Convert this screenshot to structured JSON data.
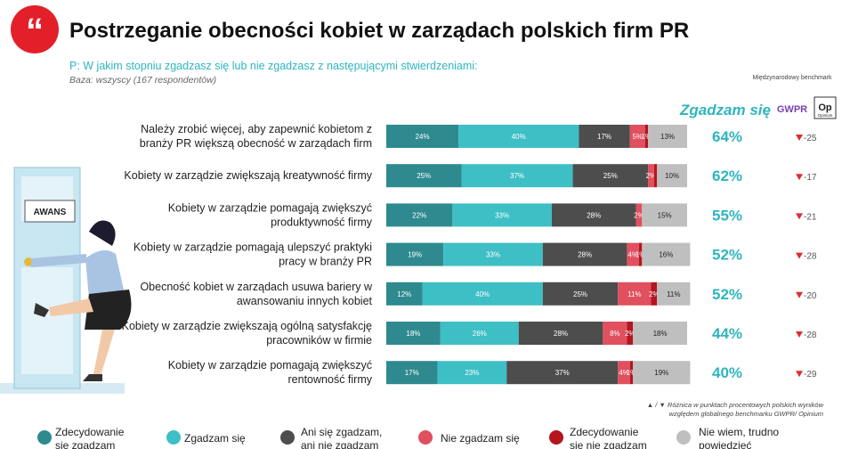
{
  "title": "Postrzeganie obecności kobiet w zarządach polskich firm PR",
  "chart_data": {
    "type": "stacked-bar-horizontal",
    "question": "P: W jakim stopniu zgadzasz się lub nie zgadzasz z następującymi stwierdzeniami:",
    "base": "Baza: wszyscy (167 respondentów)",
    "categories": [
      [
        "Należy zrobić więcej, aby zapewnić kobietom z",
        "branży PR większą obecność w zarządach firm"
      ],
      [
        "Kobiety w zarządzie zwiększają kreatywność firmy"
      ],
      [
        "Kobiety w zarządzie pomagają zwiększyć",
        "produktywność firmy"
      ],
      [
        "Kobiety w zarządzie pomagają ulepszyć praktyki",
        "pracy w branży PR"
      ],
      [
        "Obecność kobiet w zarządach usuwa bariery w",
        "awansowaniu innych kobiet"
      ],
      [
        "Kobiety w zarządzie zwiększają ogólną satysfakcję",
        "pracowników w firmie"
      ],
      [
        "Kobiety w zarządzie pomagają zwiększyć",
        "rentowność firmy"
      ]
    ],
    "series": [
      {
        "name": "Zdecydowanie się zgadzam",
        "color": "#2e8a8f",
        "values": [
          24,
          25,
          22,
          19,
          12,
          18,
          17
        ],
        "value_labels": [
          "24%",
          "25%",
          "22%",
          "19%",
          "12%",
          "18%",
          "17%"
        ]
      },
      {
        "name": "Zgadzam się",
        "color": "#3dbfc5",
        "values": [
          40,
          37,
          33,
          33,
          40,
          26,
          23
        ],
        "value_labels": [
          "40%",
          "37%",
          "33%",
          "33%",
          "40%",
          "26%",
          "23%"
        ]
      },
      {
        "name": "Ani się zgadzam, ani nie zgadzam",
        "color": "#4d4d4d",
        "values": [
          17,
          25,
          28,
          28,
          25,
          28,
          37
        ],
        "value_labels": [
          "17%",
          "25%",
          "28%",
          "28%",
          "25%",
          "28%",
          "37%"
        ]
      },
      {
        "name": "Nie zgadzam się",
        "color": "#e0505f",
        "values": [
          5,
          2,
          2,
          4,
          11,
          8,
          4
        ],
        "value_labels": [
          "5%",
          "2%",
          "2%",
          "4%",
          "11%",
          "8%",
          "4%"
        ]
      },
      {
        "name": "Zdecydowanie się nie zgadzam",
        "color": "#b3161f",
        "values": [
          1,
          1,
          0,
          1,
          2,
          2,
          1
        ],
        "value_labels": [
          "1%",
          null,
          null,
          "1%",
          "2%",
          "2%",
          "1%"
        ]
      },
      {
        "name": "Nie wiem, trudno powiedzieć",
        "color": "#bfbfbf",
        "values": [
          13,
          10,
          15,
          16,
          11,
          18,
          19
        ],
        "value_labels": [
          "13%",
          "10%",
          "15%",
          "16%",
          "11%",
          "18%",
          "19%"
        ]
      }
    ],
    "xlim": [
      0,
      100
    ],
    "agree_header": "Zgadzam się",
    "agree_values": [
      64,
      62,
      55,
      52,
      52,
      44,
      40
    ],
    "agree_labels": [
      "64%",
      "62%",
      "55%",
      "52%",
      "52%",
      "44%",
      "40%"
    ],
    "benchmark_header": "Międzynarodowy benchmark",
    "benchmark_logos": [
      "GWPR",
      "Op",
      "Opinium"
    ],
    "benchmark_values": [
      -25,
      -17,
      -21,
      -28,
      -20,
      -28,
      -29
    ],
    "footnote": [
      "▲ / ▼ Różnica w punktach procentowych  polskich wyników",
      "względem globalnego benchmarku GWPR/ Opinium"
    ],
    "illustration_label": "AWANS"
  }
}
